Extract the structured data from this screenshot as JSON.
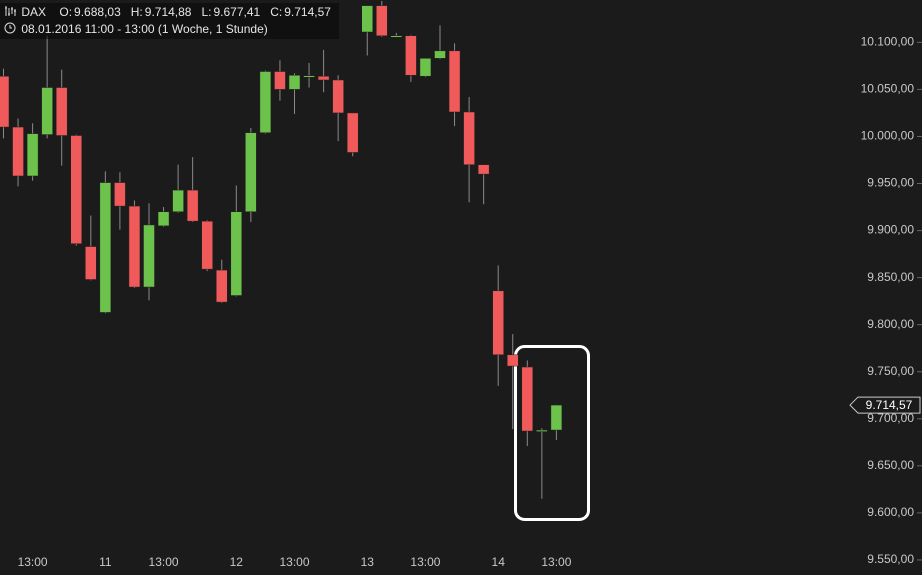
{
  "header": {
    "symbol": "DAX",
    "fields": [
      {
        "key": "O:",
        "value": "9.688,03"
      },
      {
        "key": "H:",
        "value": "9.714,88"
      },
      {
        "key": "L:",
        "value": "9.677,41"
      },
      {
        "key": "C:",
        "value": "9.714,57"
      }
    ],
    "period": "08.01.2016 11:00 - 13:00 (1 Woche, 1 Stunde)"
  },
  "chart_data": {
    "type": "candlestick",
    "categories": [
      null,
      null,
      "13:00",
      null,
      null,
      null,
      null,
      "11",
      null,
      null,
      null,
      "13:00",
      null,
      null,
      null,
      null,
      "12",
      null,
      null,
      null,
      "13:00",
      null,
      null,
      null,
      null,
      "13",
      null,
      null,
      null,
      "13:00",
      null,
      null,
      null,
      null,
      "14",
      null,
      null,
      null,
      "13:00"
    ],
    "open": [
      10064,
      10010,
      9958,
      10002,
      10052,
      10001,
      9883,
      9813,
      9951,
      9926,
      9840,
      9905,
      9920,
      9943,
      9910,
      9858,
      9831,
      9920,
      10004,
      10069,
      10050,
      10064,
      10064,
      10060,
      10025,
      10111,
      10139,
      10107,
      10107,
      10064,
      10083,
      10091,
      10026,
      9970,
      9836,
      9768,
      9755,
      9687,
      9688.03
    ],
    "high": [
      10072,
      10019,
      10014,
      10107,
      10071,
      10002,
      9916,
      9963,
      9962,
      9932,
      9929,
      9925,
      9970,
      9978,
      9911,
      9869,
      9948,
      10009,
      10070,
      10081,
      10067,
      10078,
      10092,
      10065,
      10025,
      10139,
      10144,
      10110,
      10108,
      10083,
      10118,
      10099,
      10042,
      9970,
      9863,
      9790,
      9762,
      9690,
      9714.88
    ],
    "low": [
      9998,
      9947,
      9953,
      9998,
      9969,
      9884,
      9847,
      9812,
      9901,
      9839,
      9826,
      9904,
      9919,
      9909,
      9857,
      9823,
      9830,
      9909,
      10003,
      10038,
      10024,
      10052,
      10047,
      9995,
      9979,
      10086,
      10106,
      10106,
      10058,
      10063,
      10082,
      10011,
      9930,
      9928,
      9735,
      9689,
      9671,
      9615,
      9677.41
    ],
    "close": [
      10010,
      9958,
      10003,
      10052,
      10001,
      9886,
      9848,
      9951,
      9926,
      9840,
      9906,
      9920,
      9943,
      9910,
      9859,
      9824,
      9920,
      10004,
      10069,
      10050,
      10065,
      10064.5,
      10060,
      10025,
      9983,
      10139,
      10107,
      10107,
      10065,
      10083,
      10091,
      10026,
      9970,
      9960,
      9768,
      9756,
      9687,
      9688,
      9714.57
    ],
    "up_color": "#6cc24a",
    "down_color": "#f05a5a",
    "ylim": [
      9534,
      10145
    ],
    "yticks": [
      {
        "value": 10100,
        "label": "10.100,00"
      },
      {
        "value": 10050,
        "label": "10.050,00"
      },
      {
        "value": 10000,
        "label": "10.000,00"
      },
      {
        "value": 9950,
        "label": "9.950,00"
      },
      {
        "value": 9900,
        "label": "9.900,00"
      },
      {
        "value": 9850,
        "label": "9.850,00"
      },
      {
        "value": 9800,
        "label": "9.800,00"
      },
      {
        "value": 9750,
        "label": "9.750,00"
      },
      {
        "value": 9700,
        "label": "9.700,00"
      },
      {
        "value": 9650,
        "label": "9.650,00"
      },
      {
        "value": 9600,
        "label": "9.600,00"
      },
      {
        "value": 9550,
        "label": "9.550,00"
      }
    ],
    "last_price": {
      "value": 9714.57,
      "label": "9.714,57"
    }
  }
}
